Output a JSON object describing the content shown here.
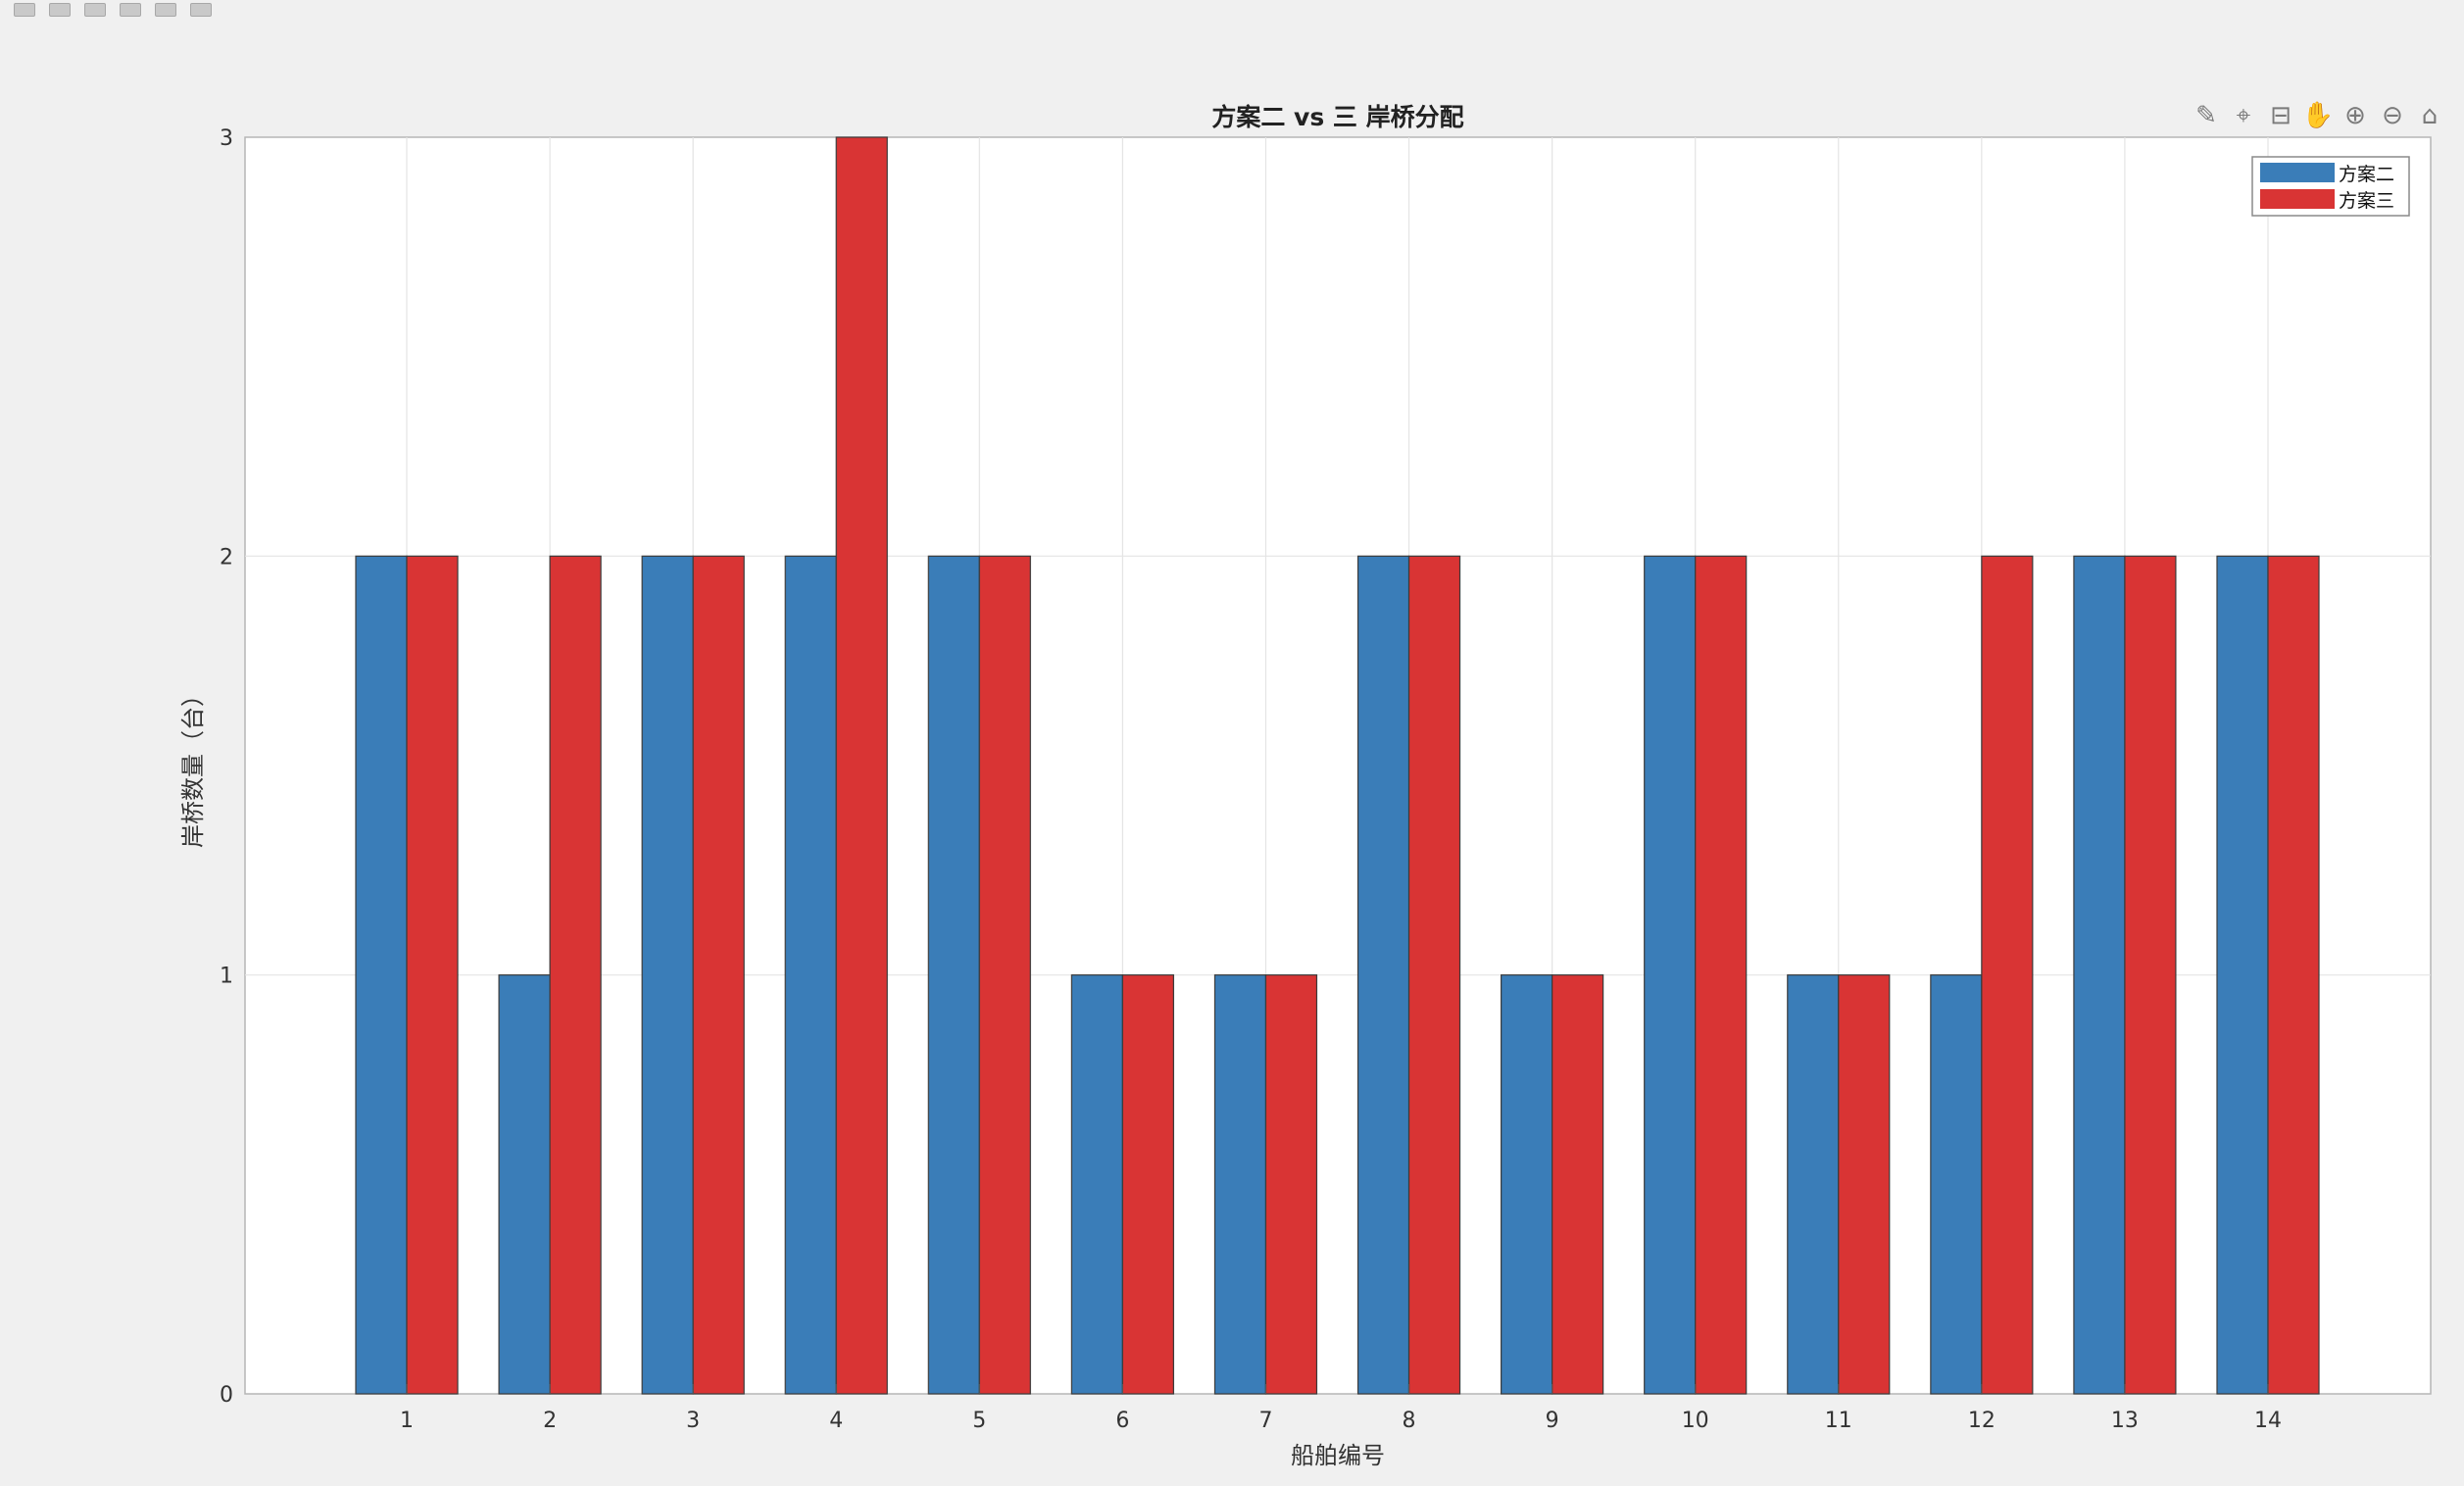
{
  "toolbar": {
    "icons": [
      "open-file-icon",
      "save-icon",
      "new-figure-icon",
      "print-icon",
      "pointer-icon",
      "insert-colorbar-icon"
    ]
  },
  "axes_toolbar": {
    "icons": [
      {
        "name": "brush-icon",
        "glyph": "✎"
      },
      {
        "name": "data-tips-icon",
        "glyph": "⌖"
      },
      {
        "name": "rotate-icon",
        "glyph": "⊟"
      },
      {
        "name": "pan-icon",
        "glyph": "✋"
      },
      {
        "name": "zoom-in-icon",
        "glyph": "⊕"
      },
      {
        "name": "zoom-out-icon",
        "glyph": "⊖"
      },
      {
        "name": "home-icon",
        "glyph": "⌂"
      }
    ]
  },
  "chart_data": {
    "type": "bar",
    "title": "方案二 vs 三 岸桥分配",
    "xlabel": "船舶编号",
    "ylabel": "岸桥数量（台）",
    "categories": [
      "1",
      "2",
      "3",
      "4",
      "5",
      "6",
      "7",
      "8",
      "9",
      "10",
      "11",
      "12",
      "13",
      "14"
    ],
    "series": [
      {
        "name": "方案二",
        "color": "#3a7db8",
        "values": [
          2,
          1,
          2,
          2,
          2,
          1,
          1,
          2,
          1,
          2,
          1,
          1,
          2,
          2
        ]
      },
      {
        "name": "方案三",
        "color": "#d93434",
        "values": [
          2,
          2,
          2,
          3,
          2,
          1,
          1,
          2,
          1,
          2,
          1,
          2,
          2,
          2
        ]
      }
    ],
    "ylim": [
      0,
      3
    ],
    "yticks": [
      "0",
      "1",
      "2",
      "3"
    ],
    "grid": true,
    "legend_position": "top-right"
  }
}
